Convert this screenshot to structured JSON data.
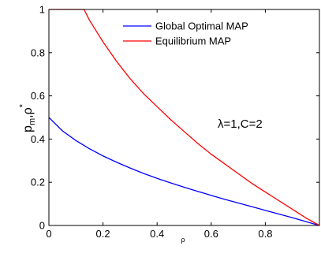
{
  "chart_data": {
    "type": "line",
    "title": "",
    "xlabel": "ρ",
    "ylabel_main": "p",
    "ylabel_sub": "m",
    "ylabel_tail": ",ρ",
    "ylabel_sup": "*",
    "xlim": [
      0,
      1
    ],
    "ylim": [
      0,
      1
    ],
    "xticks": [
      0,
      0.2,
      0.4,
      0.6,
      0.8
    ],
    "xtick_labels": [
      "0",
      "0.2",
      "0.4",
      "0.6",
      "0.8"
    ],
    "yticks": [
      0,
      0.2,
      0.4,
      0.6,
      0.8,
      1
    ],
    "ytick_labels": [
      "0",
      "0.2",
      "0.4",
      "0.6",
      "0.8",
      "1"
    ],
    "grid": false,
    "legend_position": "top-right",
    "annotation": "λ=1,C=2",
    "series": [
      {
        "name": "Global Optimal MAP",
        "color": "#0000ff",
        "x": [
          0,
          0.05,
          0.1,
          0.15,
          0.2,
          0.25,
          0.3,
          0.35,
          0.4,
          0.45,
          0.5,
          0.55,
          0.6,
          0.65,
          0.7,
          0.75,
          0.8,
          0.85,
          0.9,
          0.95,
          1.0
        ],
        "y": [
          0.5,
          0.438,
          0.393,
          0.355,
          0.322,
          0.293,
          0.266,
          0.241,
          0.218,
          0.197,
          0.177,
          0.158,
          0.139,
          0.121,
          0.104,
          0.087,
          0.07,
          0.053,
          0.036,
          0.018,
          0.0
        ]
      },
      {
        "name": "Equilibrium MAP",
        "color": "#ff0000",
        "x": [
          0,
          0.05,
          0.1,
          0.13,
          0.15,
          0.2,
          0.25,
          0.3,
          0.35,
          0.4,
          0.45,
          0.5,
          0.55,
          0.6,
          0.65,
          0.7,
          0.75,
          0.8,
          0.85,
          0.9,
          0.95,
          1.0
        ],
        "y": [
          1,
          1,
          1,
          1,
          0.95,
          0.85,
          0.76,
          0.68,
          0.61,
          0.55,
          0.49,
          0.435,
          0.38,
          0.33,
          0.285,
          0.24,
          0.195,
          0.155,
          0.115,
          0.075,
          0.035,
          0.0
        ]
      }
    ]
  }
}
